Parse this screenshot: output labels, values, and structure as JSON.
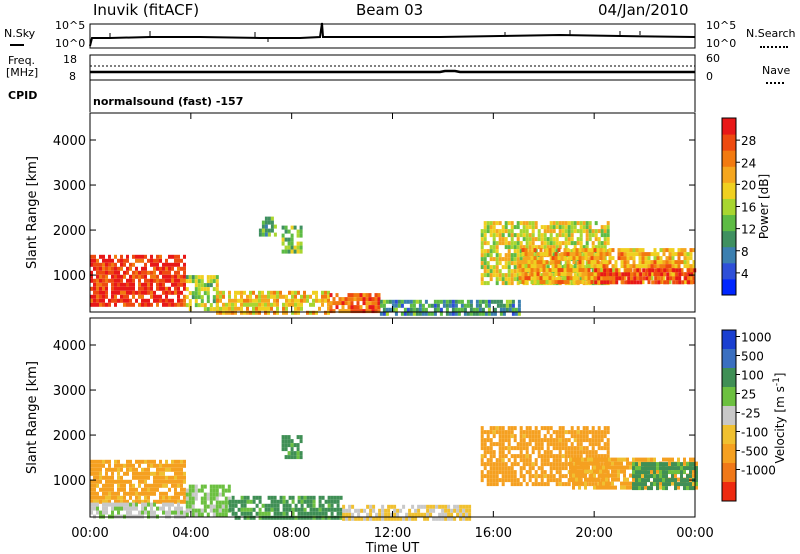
{
  "header": {
    "station": "Inuvik (fitACF)",
    "beam": "Beam 03",
    "date": "04/Jan/2010"
  },
  "strip_labels": {
    "nsky": "N.Sky",
    "nsky_top": "10^5",
    "nsky_bot": "10^0",
    "nsearch": "N.Search",
    "nsearch_top": "10^5",
    "nsearch_bot": "10^0",
    "freq": "Freq.",
    "freq_unit": "[MHz]",
    "freq_top": "18",
    "freq_bot": "8",
    "nave": "Nave",
    "nave_top": "60",
    "nave_bot": "0",
    "cpid_label": "CPID",
    "cpid_text": "normalsound (fast) -157"
  },
  "colors": {
    "power": [
      "#0026ff",
      "#2e4fd8",
      "#3b7fb0",
      "#3f9060",
      "#5dbb44",
      "#a8d630",
      "#f0d020",
      "#f5a61e",
      "#f27a10",
      "#ee4a10",
      "#e81818"
    ],
    "velocity": [
      "#1a3fd0",
      "#3a6fc0",
      "#3f8f55",
      "#6cc040",
      "#c8c8c8",
      "#f0c030",
      "#f5a020",
      "#f07818",
      "#ee2a10"
    ]
  },
  "chart_data": [
    {
      "type": "heatmap",
      "name": "power",
      "ylabel": "Slant Range [km]",
      "xlabel": "",
      "xlim": [
        0,
        24
      ],
      "ylim": [
        180,
        4600
      ],
      "xticks": [
        "00:00",
        "04:00",
        "08:00",
        "12:00",
        "16:00",
        "20:00",
        "00:00"
      ],
      "yticks": [
        1000,
        2000,
        3000,
        4000
      ],
      "colorbar": {
        "label": "Power [dB]",
        "ticks": [
          4,
          8,
          12,
          16,
          20,
          24,
          28
        ],
        "range": [
          0,
          32
        ]
      },
      "regions": [
        {
          "t0": 0.0,
          "t1": 3.8,
          "r0": 380,
          "r1": 1450,
          "value": 29
        },
        {
          "t0": 3.8,
          "t1": 5.0,
          "r0": 250,
          "r1": 1000,
          "value": 16
        },
        {
          "t0": 5.0,
          "t1": 9.5,
          "r0": 200,
          "r1": 650,
          "value": 20
        },
        {
          "t0": 9.5,
          "t1": 11.5,
          "r0": 200,
          "r1": 600,
          "value": 26
        },
        {
          "t0": 6.7,
          "t1": 7.3,
          "r0": 1900,
          "r1": 2300,
          "value": 12
        },
        {
          "t0": 7.6,
          "t1": 8.4,
          "r0": 1500,
          "r1": 2100,
          "value": 14
        },
        {
          "t0": 11.5,
          "t1": 17.0,
          "r0": 180,
          "r1": 450,
          "value": 10
        },
        {
          "t0": 15.5,
          "t1": 20.5,
          "r0": 850,
          "r1": 2200,
          "value": 18
        },
        {
          "t0": 17.0,
          "t1": 24.0,
          "r0": 850,
          "r1": 1600,
          "value": 22
        },
        {
          "t0": 20.0,
          "t1": 24.0,
          "r0": 850,
          "r1": 1150,
          "value": 29
        }
      ]
    },
    {
      "type": "heatmap",
      "name": "velocity",
      "ylabel": "Slant Range [km]",
      "xlabel": "Time UT",
      "xlim": [
        0,
        24
      ],
      "ylim": [
        180,
        4600
      ],
      "xticks": [
        "00:00",
        "04:00",
        "08:00",
        "12:00",
        "16:00",
        "20:00",
        "00:00"
      ],
      "yticks": [
        1000,
        2000,
        3000,
        4000
      ],
      "colorbar": {
        "label": "Velocity [m s^-1]",
        "ticks": [
          "1000",
          "500",
          "100",
          "25",
          "-25",
          "-100",
          "-500",
          "-1000"
        ]
      },
      "regions": [
        {
          "t0": 0.0,
          "t1": 3.8,
          "r0": 500,
          "r1": 1450,
          "value": -150
        },
        {
          "t0": 0.0,
          "t1": 3.8,
          "r0": 200,
          "r1": 500,
          "value": 10
        },
        {
          "t0": 3.8,
          "t1": 5.5,
          "r0": 200,
          "r1": 900,
          "value": 40
        },
        {
          "t0": 5.5,
          "t1": 10.0,
          "r0": 200,
          "r1": 650,
          "value": 150
        },
        {
          "t0": 7.6,
          "t1": 8.4,
          "r0": 1500,
          "r1": 2000,
          "value": 200
        },
        {
          "t0": 10.0,
          "t1": 15.0,
          "r0": 180,
          "r1": 450,
          "value": -30
        },
        {
          "t0": 15.5,
          "t1": 20.5,
          "r0": 900,
          "r1": 2200,
          "value": -200
        },
        {
          "t0": 19.0,
          "t1": 24.0,
          "r0": 850,
          "r1": 1500,
          "value": -150
        },
        {
          "t0": 21.5,
          "t1": 24.0,
          "r0": 850,
          "r1": 1400,
          "value": 150
        }
      ]
    }
  ]
}
